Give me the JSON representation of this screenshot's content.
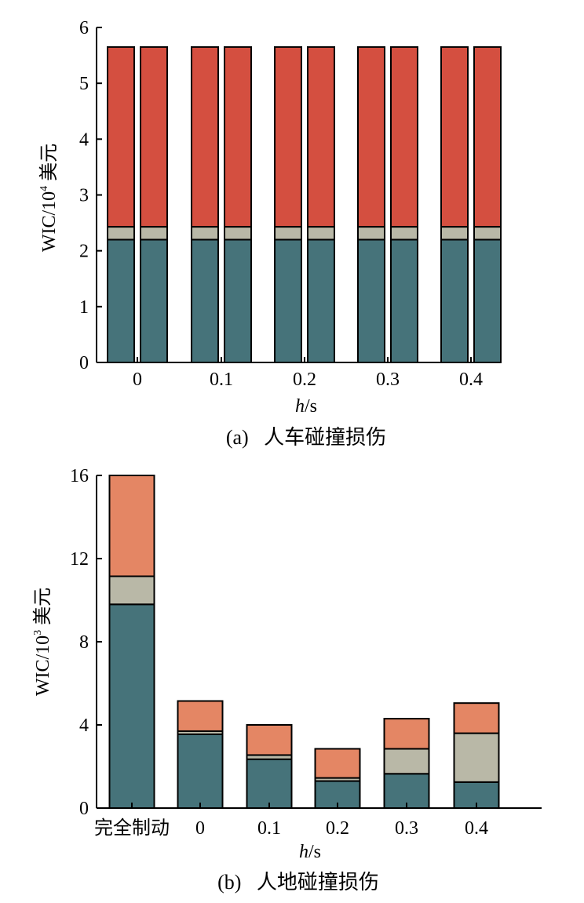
{
  "colors": {
    "dark_teal": "#46737a",
    "gray": "#b9b8a7",
    "red": "#d44f40",
    "salmon": "#e48664",
    "stroke": "#000000"
  },
  "chart_data": [
    {
      "type": "bar",
      "stacked": true,
      "caption": "(a)   人车碰撞损伤",
      "xlabel_italic": "h",
      "xlabel_unit": "/s",
      "ylabel_prefix": "WIC/10",
      "ylabel_exp": "4",
      "ylabel_suffix": " 美元",
      "ylim": [
        0,
        6
      ],
      "yticks": [
        0,
        1,
        2,
        3,
        4,
        5,
        6
      ],
      "categories": [
        "0",
        "0.1",
        "0.2",
        "0.3",
        "0.4"
      ],
      "bars_per_category": 2,
      "segments": [
        {
          "color": "dark_teal",
          "values": [
            [
              2.2,
              2.2
            ],
            [
              2.2,
              2.2
            ],
            [
              2.2,
              2.2
            ],
            [
              2.2,
              2.2
            ],
            [
              2.2,
              2.2
            ]
          ]
        },
        {
          "color": "gray",
          "values": [
            [
              0.23,
              0.23
            ],
            [
              0.23,
              0.23
            ],
            [
              0.23,
              0.23
            ],
            [
              0.23,
              0.23
            ],
            [
              0.23,
              0.23
            ]
          ]
        },
        {
          "color": "red",
          "values": [
            [
              3.22,
              3.22
            ],
            [
              3.22,
              3.22
            ],
            [
              3.22,
              3.22
            ],
            [
              3.22,
              3.22
            ],
            [
              3.22,
              3.22
            ]
          ]
        }
      ],
      "grid": false
    },
    {
      "type": "bar",
      "stacked": true,
      "caption": "(b)   人地碰撞损伤",
      "xlabel_italic": "h",
      "xlabel_unit": "/s",
      "ylabel_prefix": "WIC/10",
      "ylabel_exp": "3",
      "ylabel_suffix": " 美元",
      "ylim": [
        0,
        16
      ],
      "yticks": [
        0,
        4,
        8,
        12,
        16
      ],
      "categories": [
        "完全制动",
        "0",
        "0.1",
        "0.2",
        "0.3",
        "0.4"
      ],
      "bars_per_category": 1,
      "segments": [
        {
          "color": "dark_teal",
          "values": [
            9.8,
            3.55,
            2.35,
            1.3,
            1.65,
            1.25
          ]
        },
        {
          "color": "gray",
          "values": [
            1.35,
            0.15,
            0.2,
            0.15,
            1.2,
            2.35
          ]
        },
        {
          "color": "salmon",
          "values": [
            4.85,
            1.45,
            1.45,
            1.4,
            1.45,
            1.45
          ]
        }
      ],
      "grid": false
    }
  ]
}
